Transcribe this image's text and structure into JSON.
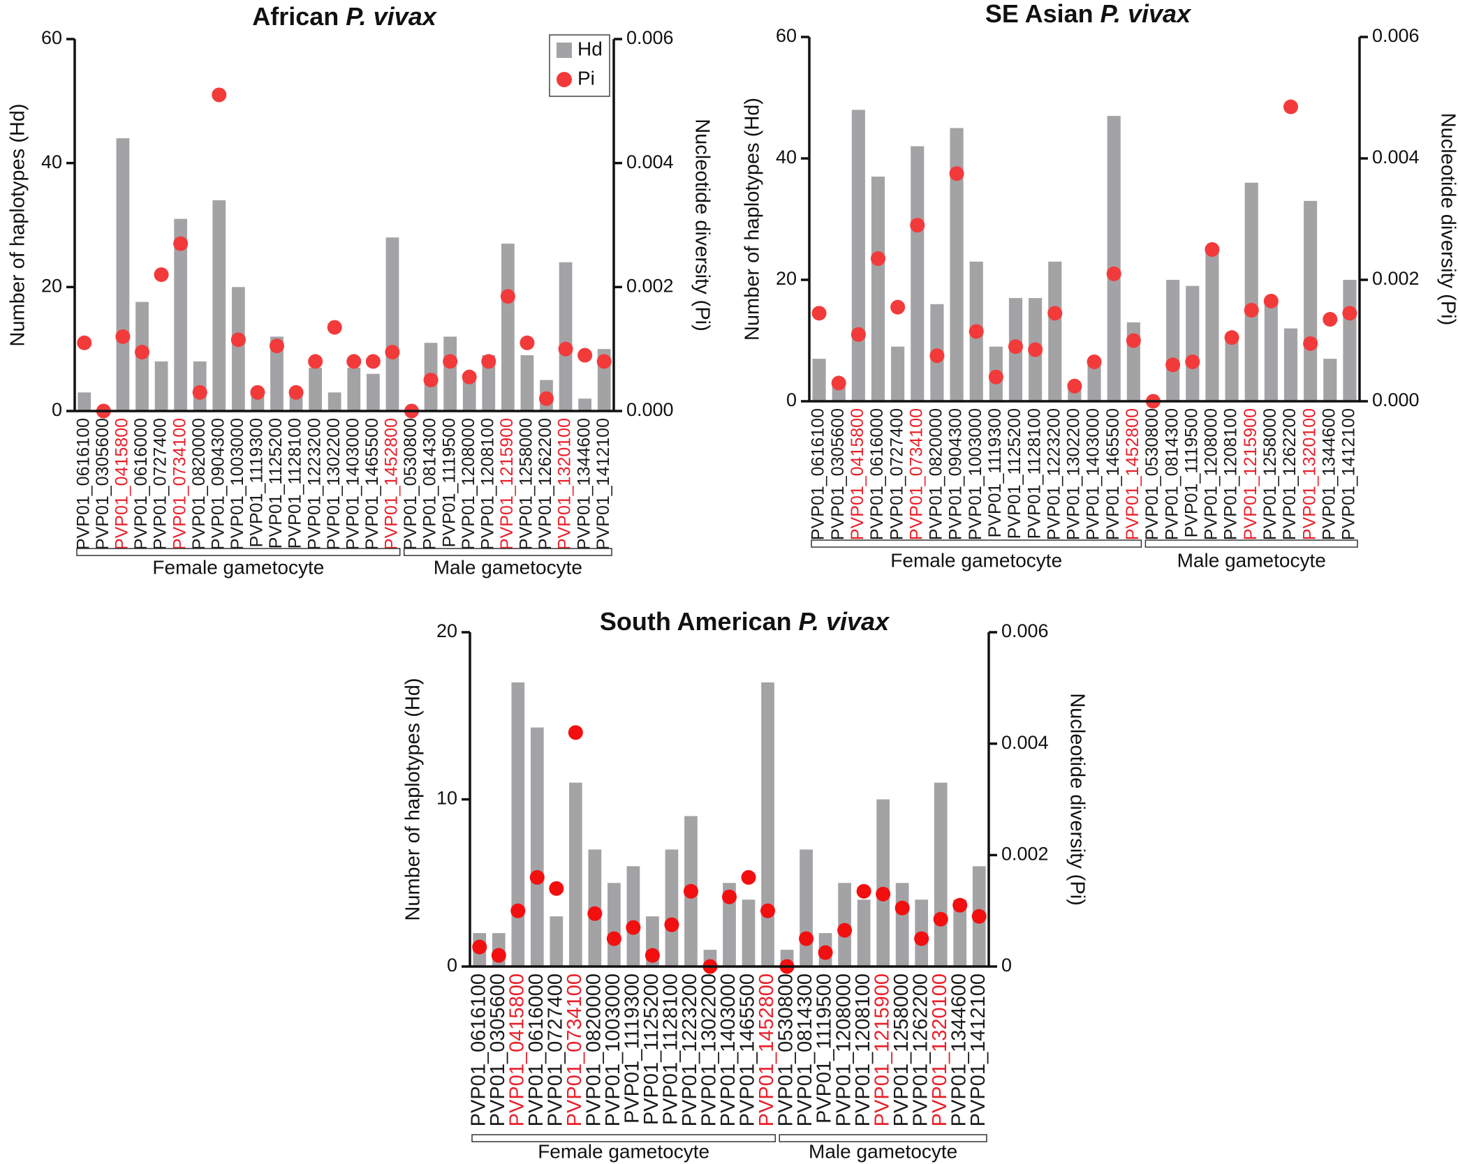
{
  "chart_data": [
    {
      "type": "bar",
      "title": "African",
      "title_italic": "P. vivax",
      "ylabel": "Number of haplotypes (Hd)",
      "y2label": "Nucleotide diversity (Pi)",
      "categories": [
        "PVP01_0616100",
        "PVP01_0305600",
        "PVP01_0415800",
        "PVP01_0616000",
        "PVP01_0727400",
        "PVP01_0734100",
        "PVP01_0820000",
        "PVP01_0904300",
        "PVP01_1003000",
        "PVP01_1119300",
        "PVP01_1125200",
        "PVP01_1128100",
        "PVP01_1223200",
        "PVP01_1302200",
        "PVP01_1403000",
        "PVP01_1465500",
        "PVP01_1452800",
        "PVP01_0530800",
        "PVP01_0814300",
        "PVP01_1119500",
        "PVP01_1208000",
        "PVP01_1208100",
        "PVP01_1215900",
        "PVP01_1258000",
        "PVP01_1262200",
        "PVP01_1320100",
        "PVP01_1344600",
        "PVP01_1412100"
      ],
      "category_colors": [
        "#1a1a1a",
        "#1a1a1a",
        "#e8202a",
        "#1a1a1a",
        "#1a1a1a",
        "#e8202a",
        "#1a1a1a",
        "#1a1a1a",
        "#1a1a1a",
        "#1a1a1a",
        "#1a1a1a",
        "#1a1a1a",
        "#1a1a1a",
        "#1a1a1a",
        "#1a1a1a",
        "#1a1a1a",
        "#e8202a",
        "#1a1a1a",
        "#1a1a1a",
        "#1a1a1a",
        "#1a1a1a",
        "#1a1a1a",
        "#e8202a",
        "#1a1a1a",
        "#1a1a1a",
        "#e8202a",
        "#1a1a1a",
        "#1a1a1a"
      ],
      "groups": [
        {
          "label": "Female gametocyte",
          "count": 17
        },
        {
          "label": "Male gametocyte",
          "count": 11
        }
      ],
      "series": [
        {
          "name": "Hd",
          "type": "bar",
          "color": "#a3a3a6",
          "axis": "y",
          "values": [
            3,
            0,
            44,
            17.6,
            8,
            31,
            8,
            34,
            20,
            3,
            12,
            3,
            7,
            3,
            7,
            6,
            28,
            0,
            11,
            12,
            5,
            9,
            27,
            9,
            5,
            24,
            2,
            10
          ]
        },
        {
          "name": "Pi",
          "type": "scatter",
          "color": "#f23a3a",
          "axis": "y2",
          "values": [
            0.0011,
            0,
            0.0012,
            0.00095,
            0.0022,
            0.0027,
            0.0003,
            0.0051,
            0.00115,
            0.0003,
            0.00105,
            0.0003,
            0.0008,
            0.00135,
            0.0008,
            0.0008,
            0.00095,
            0,
            0.0005,
            0.0008,
            0.00055,
            0.0008,
            0.00185,
            0.0011,
            0.0002,
            0.001,
            0.0009,
            0.0008
          ]
        }
      ],
      "ylim": [
        0,
        60
      ],
      "yticks": [
        0,
        20,
        40,
        60
      ],
      "y2lim": [
        0,
        0.006
      ],
      "y2ticks": [
        {
          "value": 0,
          "label": "0.000"
        },
        0.002,
        0.004,
        0.006
      ],
      "legend": "top-right"
    },
    {
      "type": "bar",
      "title": "SE Asian",
      "title_italic": "P. vivax",
      "ylabel": "Number of haplotypes (Hd)",
      "y2label": "Nucleotide diversity (Pi)",
      "categories": [
        "PVP01_0616100",
        "PVP01_0305600",
        "PVP01_0415800",
        "PVP01_0616000",
        "PVP01_0727400",
        "PVP01_0734100",
        "PVP01_0820000",
        "PVP01_0904300",
        "PVP01_1003000",
        "PVP01_1119300",
        "PVP01_1125200",
        "PVP01_1128100",
        "PVP01_1223200",
        "PVP01_1302200",
        "PVP01_1403000",
        "PVP01_1465500",
        "PVP01_1452800",
        "PVP01_0530800",
        "PVP01_0814300",
        "PVP01_1119500",
        "PVP01_1208000",
        "PVP01_1208100",
        "PVP01_1215900",
        "PVP01_1258000",
        "PVP01_1262200",
        "PVP01_1320100",
        "PVP01_1344600",
        "PVP01_1412100"
      ],
      "category_colors": [
        "#1a1a1a",
        "#1a1a1a",
        "#e8202a",
        "#1a1a1a",
        "#1a1a1a",
        "#e8202a",
        "#1a1a1a",
        "#1a1a1a",
        "#1a1a1a",
        "#1a1a1a",
        "#1a1a1a",
        "#1a1a1a",
        "#1a1a1a",
        "#1a1a1a",
        "#1a1a1a",
        "#1a1a1a",
        "#e8202a",
        "#1a1a1a",
        "#1a1a1a",
        "#1a1a1a",
        "#1a1a1a",
        "#1a1a1a",
        "#e8202a",
        "#1a1a1a",
        "#1a1a1a",
        "#e8202a",
        "#1a1a1a",
        "#1a1a1a"
      ],
      "groups": [
        {
          "label": "Female gametocyte",
          "count": 17
        },
        {
          "label": "Male gametocyte",
          "count": 11
        }
      ],
      "series": [
        {
          "type": "bar",
          "color": "#a3a3a6",
          "axis": "y",
          "values": [
            7,
            3,
            48,
            37,
            9,
            42,
            16,
            45,
            23,
            9,
            17,
            17,
            23,
            2,
            7,
            47,
            13,
            0,
            20,
            19,
            25,
            10,
            36,
            16,
            12,
            33,
            7,
            20
          ]
        },
        {
          "type": "scatter",
          "color": "#f23a3a",
          "axis": "y2",
          "values": [
            0.00145,
            0.0003,
            0.0011,
            0.00235,
            0.00155,
            0.0029,
            0.00075,
            0.00375,
            0.00115,
            0.0004,
            0.0009,
            0.00085,
            0.00145,
            0.00025,
            0.00065,
            0.0021,
            0.001,
            0,
            0.0006,
            0.00065,
            0.0025,
            0.00105,
            0.0015,
            0.00165,
            0.00485,
            0.00095,
            0.00135,
            0.00145
          ]
        }
      ],
      "ylim": [
        0,
        60
      ],
      "yticks": [
        0,
        20,
        40,
        60
      ],
      "y2lim": [
        0,
        0.006
      ],
      "y2ticks": [
        {
          "value": 0,
          "label": "0.000"
        },
        0.002,
        0.004,
        0.006
      ]
    },
    {
      "type": "bar",
      "title": "South American",
      "title_italic": "P. vivax",
      "ylabel": "Number of haplotypes (Hd)",
      "y2label": "Nucleotide diversity (Pi)",
      "categories": [
        "PVP01_0616100",
        "PVP01_0305600",
        "PVP01_0415800",
        "PVP01_0616000",
        "PVP01_0727400",
        "PVP01_0734100",
        "PVP01_0820000",
        "PVP01_1003000",
        "PVP01_1119300",
        "PVP01_1125200",
        "PVP01_1128100",
        "PVP01_1223200",
        "PVP01_1302200",
        "PVP01_1403000",
        "PVP01_1465500",
        "PVP01_1452800",
        "PVP01_0530800",
        "PVP01_0814300",
        "PVP01_1119500",
        "PVP01_1208000",
        "PVP01_1208100",
        "PVP01_1215900",
        "PVP01_1258000",
        "PVP01_1262200",
        "PVP01_1320100",
        "PVP01_1344600",
        "PVP01_1412100"
      ],
      "category_colors": [
        "#1a1a1a",
        "#1a1a1a",
        "#e8202a",
        "#1a1a1a",
        "#1a1a1a",
        "#e8202a",
        "#1a1a1a",
        "#1a1a1a",
        "#1a1a1a",
        "#1a1a1a",
        "#1a1a1a",
        "#1a1a1a",
        "#1a1a1a",
        "#1a1a1a",
        "#1a1a1a",
        "#e8202a",
        "#1a1a1a",
        "#1a1a1a",
        "#1a1a1a",
        "#1a1a1a",
        "#1a1a1a",
        "#e8202a",
        "#1a1a1a",
        "#1a1a1a",
        "#e8202a",
        "#1a1a1a",
        "#1a1a1a"
      ],
      "groups": [
        {
          "label": "Female gametocyte",
          "count": 16
        },
        {
          "label": "Male gametocyte",
          "count": 11
        }
      ],
      "series": [
        {
          "type": "bar",
          "color": "#a3a3a6",
          "axis": "y",
          "values": [
            2,
            2,
            17,
            14.3,
            3,
            11,
            7,
            5,
            6,
            3,
            7,
            9,
            1,
            5,
            4,
            17,
            1,
            7,
            2,
            5,
            4,
            10,
            5,
            4,
            11,
            4,
            6
          ]
        },
        {
          "type": "scatter",
          "color": "#f20f0f",
          "axis": "y2",
          "values": [
            0.00035,
            0.0002,
            0.001,
            0.0016,
            0.0014,
            0.0042,
            0.00095,
            0.0005,
            0.0007,
            0.0002,
            0.00075,
            0.00135,
            0,
            0.00125,
            0.0016,
            0.001,
            0,
            0.0005,
            0.00025,
            0.00065,
            0.00135,
            0.0013,
            0.00105,
            0.0005,
            0.00085,
            0.0011,
            0.0009
          ]
        }
      ],
      "ylim": [
        0,
        20
      ],
      "yticks": [
        0,
        10,
        20
      ],
      "y2lim": [
        0,
        0.006
      ],
      "y2ticks": [
        0,
        0.002,
        0.004,
        0.006
      ]
    }
  ]
}
